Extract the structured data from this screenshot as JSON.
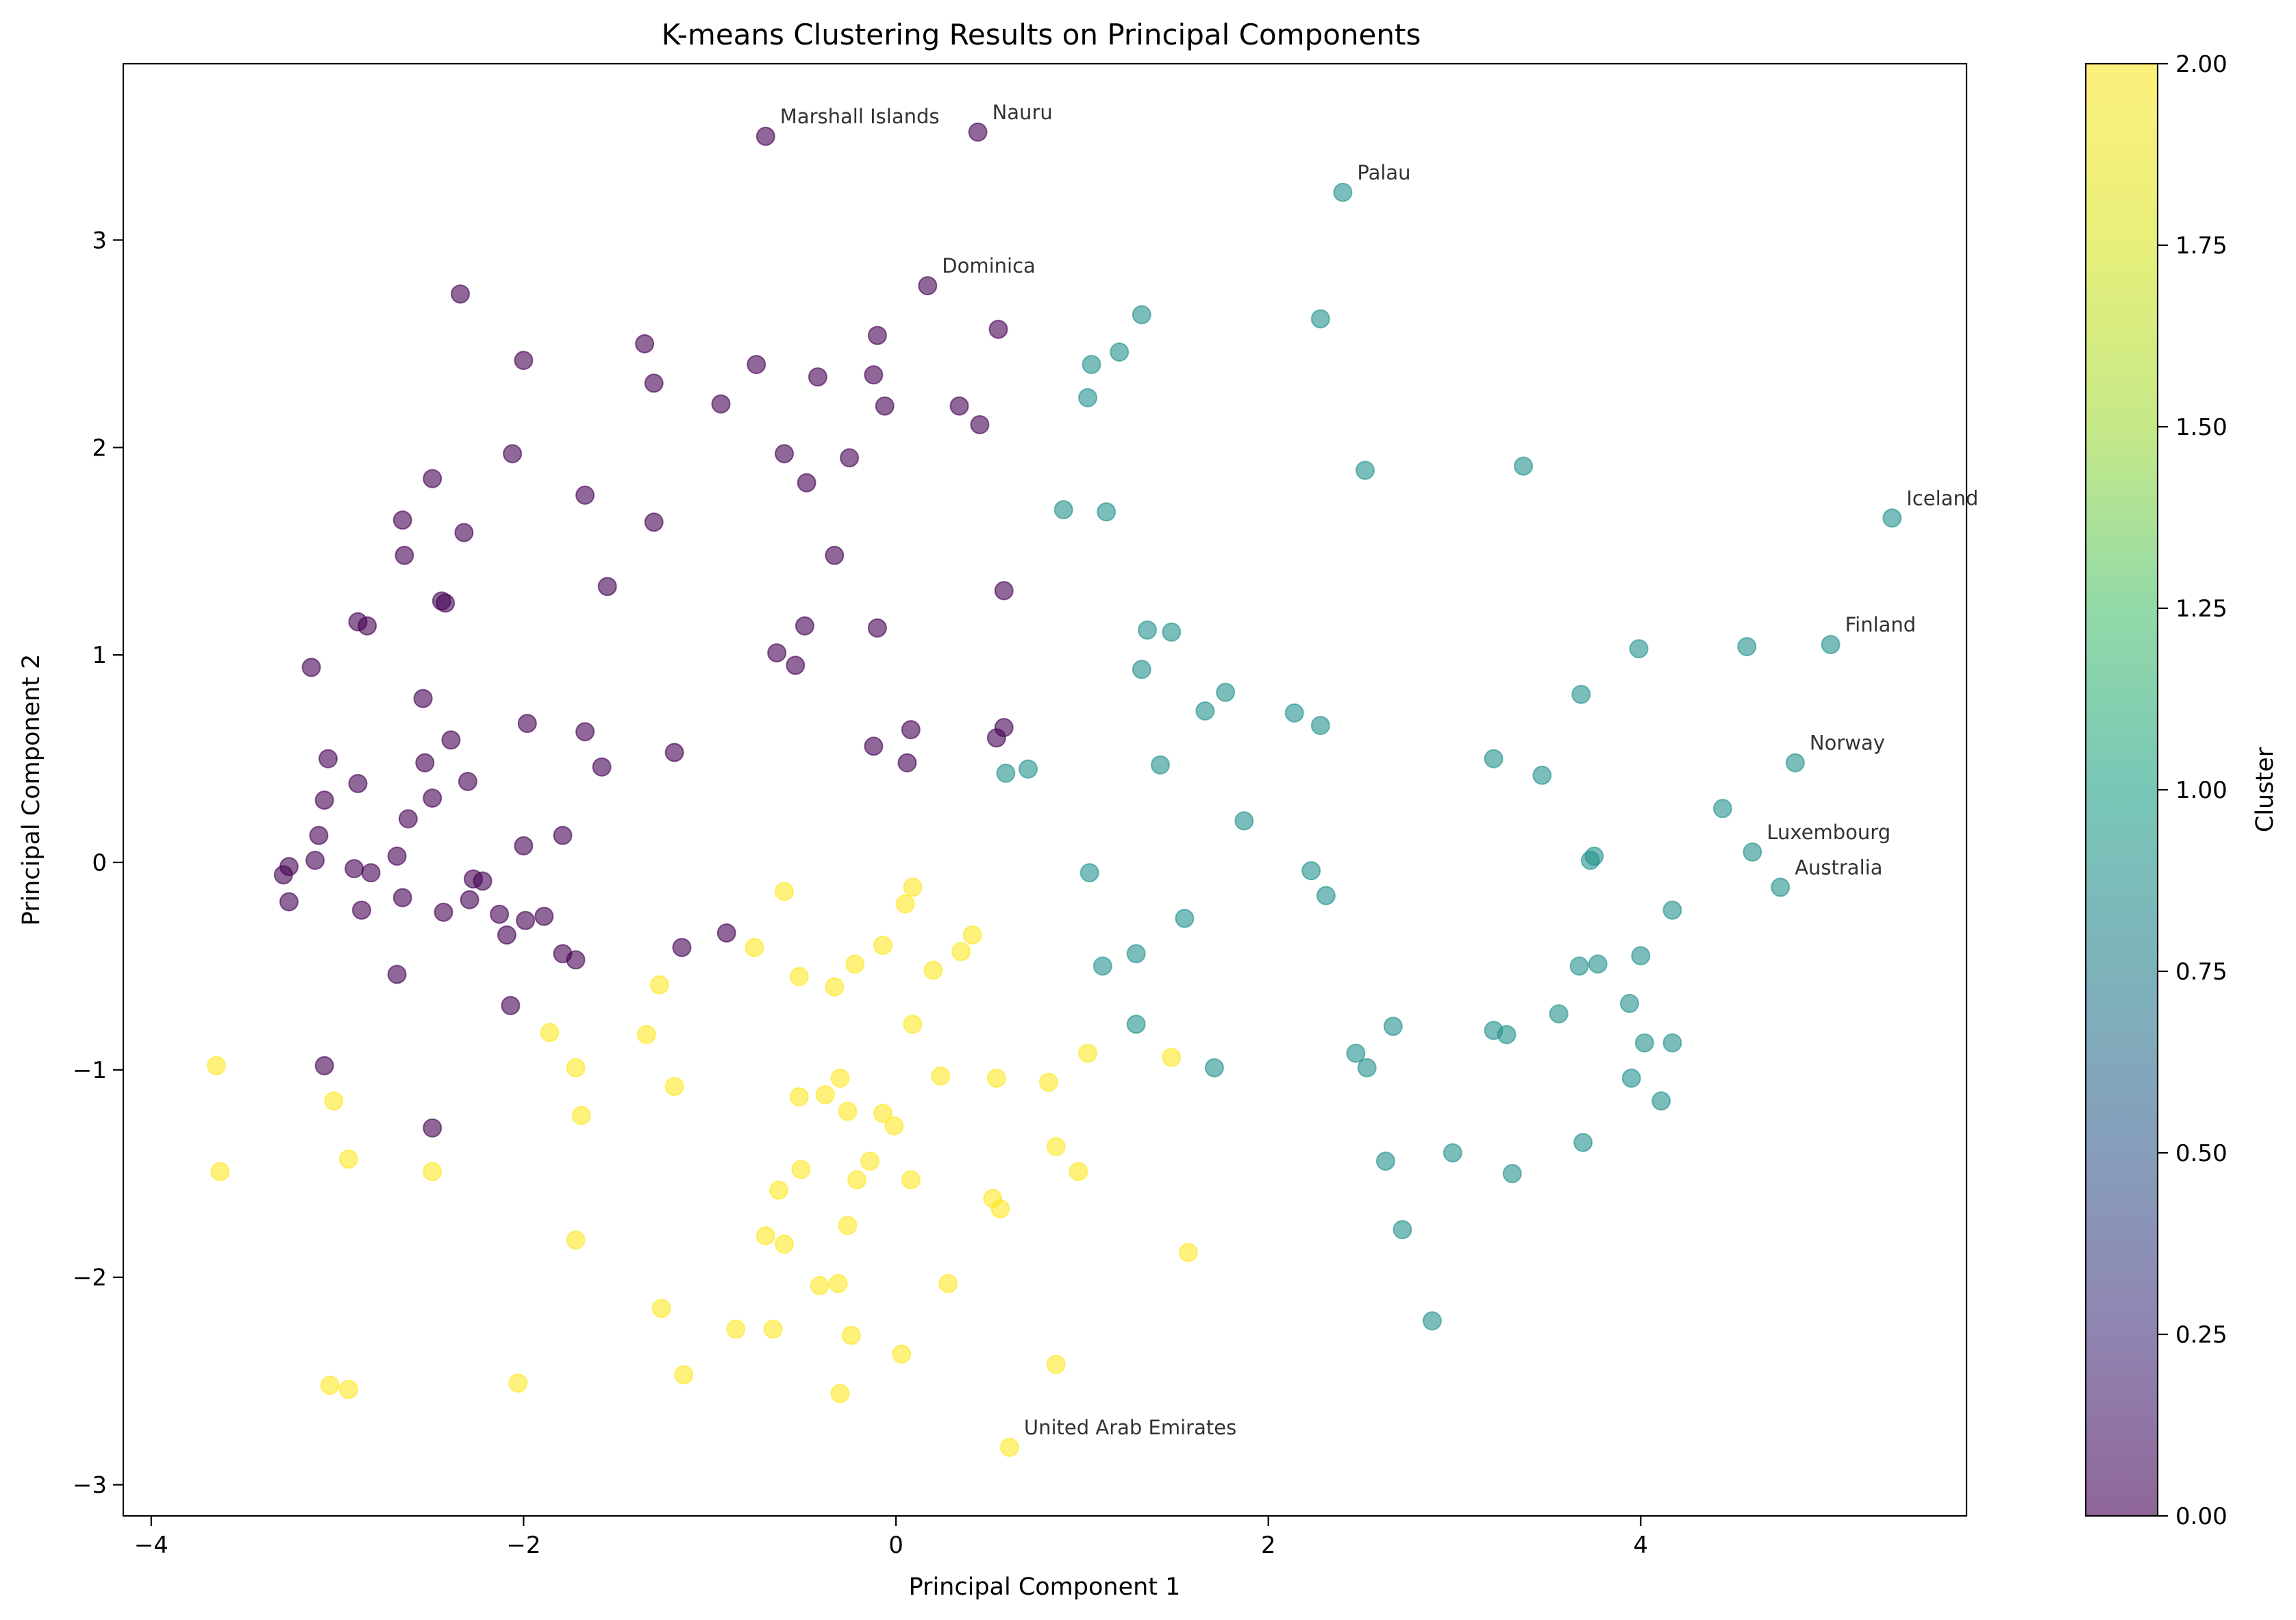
{
  "chart_data": {
    "type": "scatter",
    "title": "K-means Clustering Results on Principal Components",
    "xlabel": "Principal Component 1",
    "ylabel": "Principal Component 2",
    "xlim": [
      -4.15,
      5.75
    ],
    "ylim": [
      -3.15,
      3.85
    ],
    "xticks": [
      -4,
      -2,
      0,
      2,
      4
    ],
    "yticks": [
      -3,
      -2,
      -1,
      0,
      1,
      2,
      3
    ],
    "grid": false,
    "colorbar": {
      "label": "Cluster",
      "colormap": "viridis",
      "range": [
        0,
        2
      ],
      "ticks": [
        "0.00",
        "0.25",
        "0.50",
        "0.75",
        "1.00",
        "1.25",
        "1.50",
        "1.75",
        "2.00"
      ]
    },
    "cluster_colors": {
      "0": "#440154",
      "1": "#21918c",
      "2": "#fde725"
    },
    "series": [
      {
        "cluster": 0,
        "points": [
          [
            -0.7,
            3.5
          ],
          [
            0.44,
            3.52
          ],
          [
            0.17,
            2.78
          ],
          [
            -2.34,
            2.74
          ],
          [
            -2.0,
            2.42
          ],
          [
            -1.35,
            2.5
          ],
          [
            -1.3,
            2.31
          ],
          [
            -0.75,
            2.4
          ],
          [
            -0.42,
            2.34
          ],
          [
            -0.12,
            2.35
          ],
          [
            -0.1,
            2.54
          ],
          [
            0.55,
            2.57
          ],
          [
            -0.94,
            2.21
          ],
          [
            -0.06,
            2.2
          ],
          [
            0.34,
            2.2
          ],
          [
            0.45,
            2.11
          ],
          [
            -2.06,
            1.97
          ],
          [
            -0.6,
            1.97
          ],
          [
            -0.25,
            1.95
          ],
          [
            -2.49,
            1.85
          ],
          [
            -0.48,
            1.83
          ],
          [
            -1.67,
            1.77
          ],
          [
            -2.65,
            1.65
          ],
          [
            -1.3,
            1.64
          ],
          [
            -2.32,
            1.59
          ],
          [
            -2.64,
            1.48
          ],
          [
            -0.33,
            1.48
          ],
          [
            -1.55,
            1.33
          ],
          [
            0.58,
            1.31
          ],
          [
            -2.44,
            1.26
          ],
          [
            -2.42,
            1.25
          ],
          [
            -2.89,
            1.16
          ],
          [
            -2.84,
            1.14
          ],
          [
            -0.49,
            1.14
          ],
          [
            -0.1,
            1.13
          ],
          [
            -0.64,
            1.01
          ],
          [
            -0.54,
            0.95
          ],
          [
            -3.14,
            0.94
          ],
          [
            -2.54,
            0.79
          ],
          [
            -1.98,
            0.67
          ],
          [
            0.58,
            0.65
          ],
          [
            -1.67,
            0.63
          ],
          [
            0.08,
            0.64
          ],
          [
            0.54,
            0.6
          ],
          [
            -2.39,
            0.59
          ],
          [
            -0.12,
            0.56
          ],
          [
            -1.19,
            0.53
          ],
          [
            -3.05,
            0.5
          ],
          [
            -2.53,
            0.48
          ],
          [
            0.06,
            0.48
          ],
          [
            -1.58,
            0.46
          ],
          [
            -2.3,
            0.39
          ],
          [
            -2.89,
            0.38
          ],
          [
            -3.07,
            0.3
          ],
          [
            -2.49,
            0.31
          ],
          [
            -2.62,
            0.21
          ],
          [
            -3.1,
            0.13
          ],
          [
            -1.79,
            0.13
          ],
          [
            -2.0,
            0.08
          ],
          [
            -2.68,
            0.03
          ],
          [
            -3.12,
            0.01
          ],
          [
            -3.26,
            -0.02
          ],
          [
            -2.91,
            -0.03
          ],
          [
            -3.29,
            -0.06
          ],
          [
            -2.82,
            -0.05
          ],
          [
            -2.27,
            -0.08
          ],
          [
            -2.22,
            -0.09
          ],
          [
            -2.65,
            -0.17
          ],
          [
            -2.29,
            -0.18
          ],
          [
            -3.26,
            -0.19
          ],
          [
            -2.87,
            -0.23
          ],
          [
            -2.43,
            -0.24
          ],
          [
            -2.13,
            -0.25
          ],
          [
            -1.99,
            -0.28
          ],
          [
            -1.89,
            -0.26
          ],
          [
            -2.09,
            -0.35
          ],
          [
            -0.91,
            -0.34
          ],
          [
            -1.15,
            -0.41
          ],
          [
            -1.79,
            -0.44
          ],
          [
            -1.72,
            -0.47
          ],
          [
            -2.68,
            -0.54
          ],
          [
            -2.07,
            -0.69
          ],
          [
            -3.07,
            -0.98
          ],
          [
            -2.49,
            -1.28
          ]
        ]
      },
      {
        "cluster": 1,
        "points": [
          [
            2.4,
            3.23
          ],
          [
            1.32,
            2.64
          ],
          [
            2.28,
            2.62
          ],
          [
            1.2,
            2.46
          ],
          [
            1.05,
            2.4
          ],
          [
            1.03,
            2.24
          ],
          [
            2.52,
            1.89
          ],
          [
            3.37,
            1.91
          ],
          [
            5.35,
            1.66
          ],
          [
            0.9,
            1.7
          ],
          [
            1.13,
            1.69
          ],
          [
            1.35,
            1.12
          ],
          [
            1.48,
            1.11
          ],
          [
            1.32,
            0.93
          ],
          [
            5.02,
            1.05
          ],
          [
            4.57,
            1.04
          ],
          [
            3.99,
            1.03
          ],
          [
            1.77,
            0.82
          ],
          [
            1.66,
            0.73
          ],
          [
            2.14,
            0.72
          ],
          [
            2.28,
            0.66
          ],
          [
            3.68,
            0.81
          ],
          [
            4.83,
            0.48
          ],
          [
            0.59,
            0.43
          ],
          [
            0.71,
            0.45
          ],
          [
            1.42,
            0.47
          ],
          [
            3.21,
            0.5
          ],
          [
            3.47,
            0.42
          ],
          [
            4.44,
            0.26
          ],
          [
            1.87,
            0.2
          ],
          [
            3.73,
            0.01
          ],
          [
            3.75,
            0.03
          ],
          [
            4.6,
            0.05
          ],
          [
            4.75,
            -0.12
          ],
          [
            1.04,
            -0.05
          ],
          [
            2.23,
            -0.04
          ],
          [
            2.31,
            -0.16
          ],
          [
            1.55,
            -0.27
          ],
          [
            4.17,
            -0.23
          ],
          [
            1.29,
            -0.44
          ],
          [
            1.11,
            -0.5
          ],
          [
            3.67,
            -0.5
          ],
          [
            3.77,
            -0.49
          ],
          [
            4.0,
            -0.45
          ],
          [
            3.56,
            -0.73
          ],
          [
            3.94,
            -0.68
          ],
          [
            1.29,
            -0.78
          ],
          [
            2.67,
            -0.79
          ],
          [
            3.21,
            -0.81
          ],
          [
            3.28,
            -0.83
          ],
          [
            4.02,
            -0.87
          ],
          [
            4.17,
            -0.87
          ],
          [
            2.47,
            -0.92
          ],
          [
            2.53,
            -0.99
          ],
          [
            1.71,
            -0.99
          ],
          [
            3.95,
            -1.04
          ],
          [
            4.11,
            -1.15
          ],
          [
            3.69,
            -1.35
          ],
          [
            2.99,
            -1.4
          ],
          [
            2.63,
            -1.44
          ],
          [
            3.31,
            -1.5
          ],
          [
            2.72,
            -1.77
          ],
          [
            2.88,
            -2.21
          ]
        ]
      },
      {
        "cluster": 2,
        "points": [
          [
            -0.6,
            -0.14
          ],
          [
            0.09,
            -0.12
          ],
          [
            0.05,
            -0.2
          ],
          [
            0.41,
            -0.35
          ],
          [
            -0.07,
            -0.4
          ],
          [
            -0.76,
            -0.41
          ],
          [
            0.35,
            -0.43
          ],
          [
            -0.22,
            -0.49
          ],
          [
            0.2,
            -0.52
          ],
          [
            -0.52,
            -0.55
          ],
          [
            -1.27,
            -0.59
          ],
          [
            -0.33,
            -0.6
          ],
          [
            0.09,
            -0.78
          ],
          [
            -1.86,
            -0.82
          ],
          [
            -1.34,
            -0.83
          ],
          [
            1.03,
            -0.92
          ],
          [
            1.48,
            -0.94
          ],
          [
            -3.65,
            -0.98
          ],
          [
            -1.72,
            -0.99
          ],
          [
            0.24,
            -1.03
          ],
          [
            -0.3,
            -1.04
          ],
          [
            0.54,
            -1.04
          ],
          [
            0.82,
            -1.06
          ],
          [
            -1.19,
            -1.08
          ],
          [
            -0.38,
            -1.12
          ],
          [
            -0.52,
            -1.13
          ],
          [
            -3.02,
            -1.15
          ],
          [
            -0.26,
            -1.2
          ],
          [
            -0.07,
            -1.21
          ],
          [
            -1.69,
            -1.22
          ],
          [
            -0.01,
            -1.27
          ],
          [
            0.86,
            -1.37
          ],
          [
            -2.94,
            -1.43
          ],
          [
            -0.14,
            -1.44
          ],
          [
            -3.63,
            -1.49
          ],
          [
            -2.49,
            -1.49
          ],
          [
            -0.51,
            -1.48
          ],
          [
            0.98,
            -1.49
          ],
          [
            -0.21,
            -1.53
          ],
          [
            0.08,
            -1.53
          ],
          [
            -0.63,
            -1.58
          ],
          [
            0.52,
            -1.62
          ],
          [
            0.56,
            -1.67
          ],
          [
            -0.26,
            -1.75
          ],
          [
            -0.7,
            -1.8
          ],
          [
            -1.72,
            -1.82
          ],
          [
            -0.6,
            -1.84
          ],
          [
            1.57,
            -1.88
          ],
          [
            -0.41,
            -2.04
          ],
          [
            -0.31,
            -2.03
          ],
          [
            0.28,
            -2.03
          ],
          [
            -1.26,
            -2.15
          ],
          [
            -0.86,
            -2.25
          ],
          [
            -0.66,
            -2.25
          ],
          [
            -0.24,
            -2.28
          ],
          [
            0.03,
            -2.37
          ],
          [
            0.86,
            -2.42
          ],
          [
            -1.14,
            -2.47
          ],
          [
            -2.03,
            -2.51
          ],
          [
            -3.04,
            -2.52
          ],
          [
            -2.94,
            -2.54
          ],
          [
            -0.3,
            -2.56
          ],
          [
            0.61,
            -2.82
          ]
        ]
      }
    ],
    "annotations": [
      {
        "text": "Marshall Islands",
        "x": -0.7,
        "y": 3.5
      },
      {
        "text": "Nauru",
        "x": 0.44,
        "y": 3.52
      },
      {
        "text": "Palau",
        "x": 2.4,
        "y": 3.23
      },
      {
        "text": "Dominica",
        "x": 0.17,
        "y": 2.78
      },
      {
        "text": "Iceland",
        "x": 5.35,
        "y": 1.66
      },
      {
        "text": "Finland",
        "x": 5.02,
        "y": 1.05
      },
      {
        "text": "Norway",
        "x": 4.83,
        "y": 0.48
      },
      {
        "text": "Luxembourg",
        "x": 4.6,
        "y": 0.05
      },
      {
        "text": "Australia",
        "x": 4.75,
        "y": -0.12
      },
      {
        "text": "United Arab Emirates",
        "x": 0.61,
        "y": -2.82
      }
    ]
  }
}
